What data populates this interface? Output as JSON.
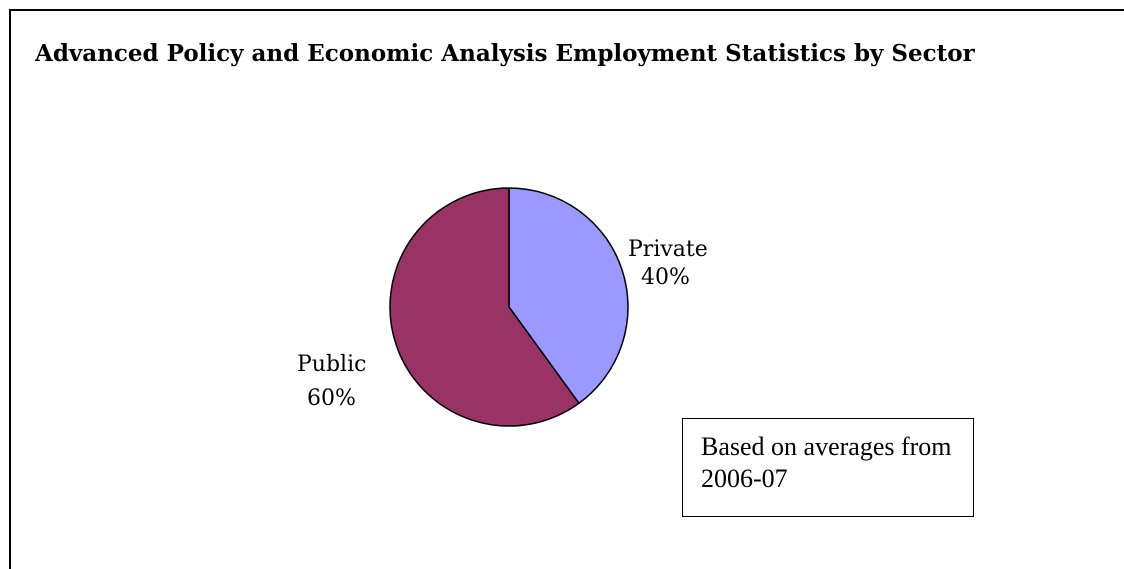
{
  "chart_data": {
    "type": "pie",
    "title": "Advanced Policy and Economic Analysis Employment Statistics by Sector",
    "slices": [
      {
        "label": "Private",
        "value": 40,
        "percent_label": "40%",
        "color": "#9999ff"
      },
      {
        "label": "Public",
        "value": 60,
        "percent_label": "60%",
        "color": "#993366"
      }
    ],
    "annotation": "Based on averages from 2006-07"
  }
}
